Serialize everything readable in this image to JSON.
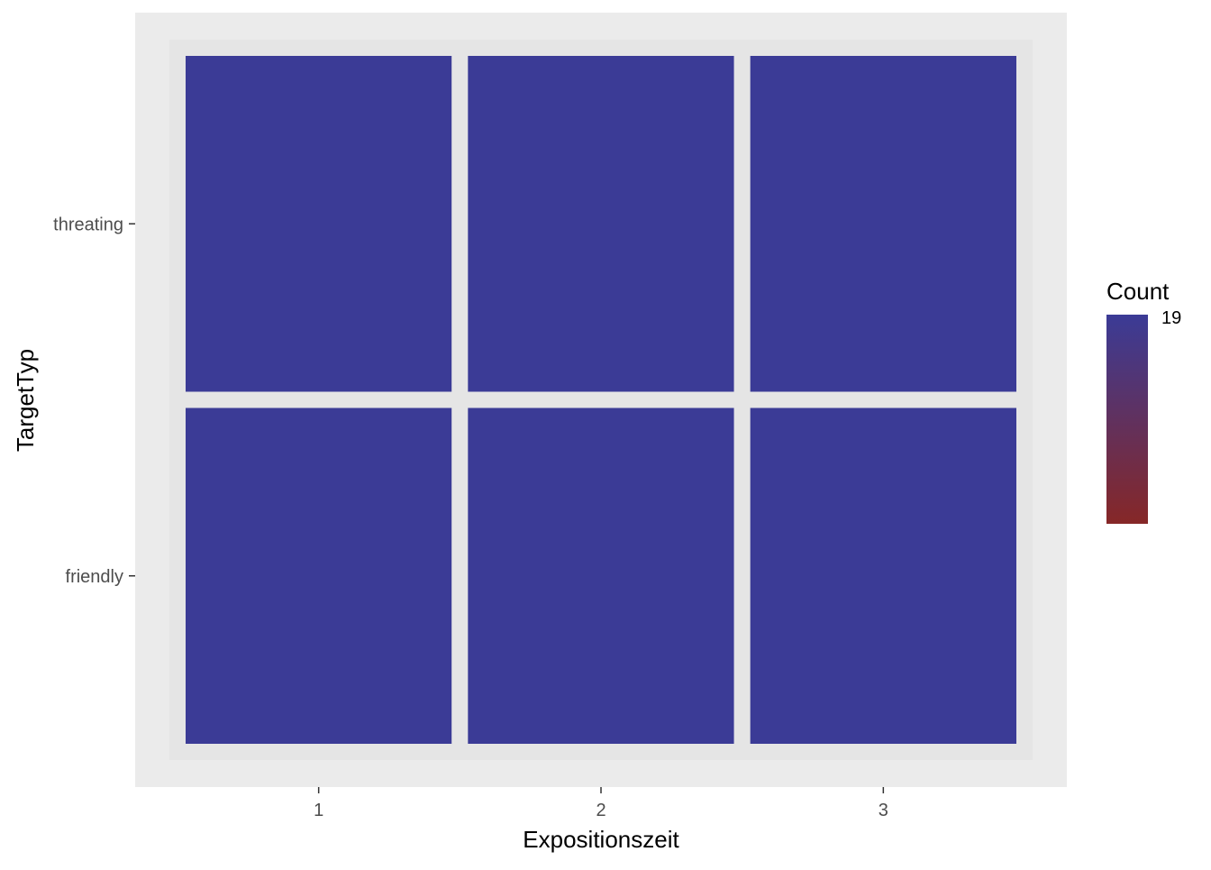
{
  "chart_data": {
    "type": "heatmap",
    "xlabel": "Expositionszeit",
    "ylabel": "TargetTyp",
    "x_categories": [
      "1",
      "2",
      "3"
    ],
    "y_categories": [
      "friendly",
      "threating"
    ],
    "cells": [
      {
        "x": "1",
        "y": "threating",
        "value": 19
      },
      {
        "x": "2",
        "y": "threating",
        "value": 19
      },
      {
        "x": "3",
        "y": "threating",
        "value": 19
      },
      {
        "x": "1",
        "y": "friendly",
        "value": 19
      },
      {
        "x": "2",
        "y": "friendly",
        "value": 19
      },
      {
        "x": "3",
        "y": "friendly",
        "value": 19
      }
    ],
    "legend": {
      "title": "Count",
      "labels": [
        "19"
      ],
      "placement": "right",
      "low_color": "#862727",
      "high_color": "#3b3b96"
    },
    "colors": {
      "panel_background": "#ebebeb",
      "cell_fill": "#3b3b96",
      "cell_border": "#e5e5e5"
    },
    "grid": true
  }
}
